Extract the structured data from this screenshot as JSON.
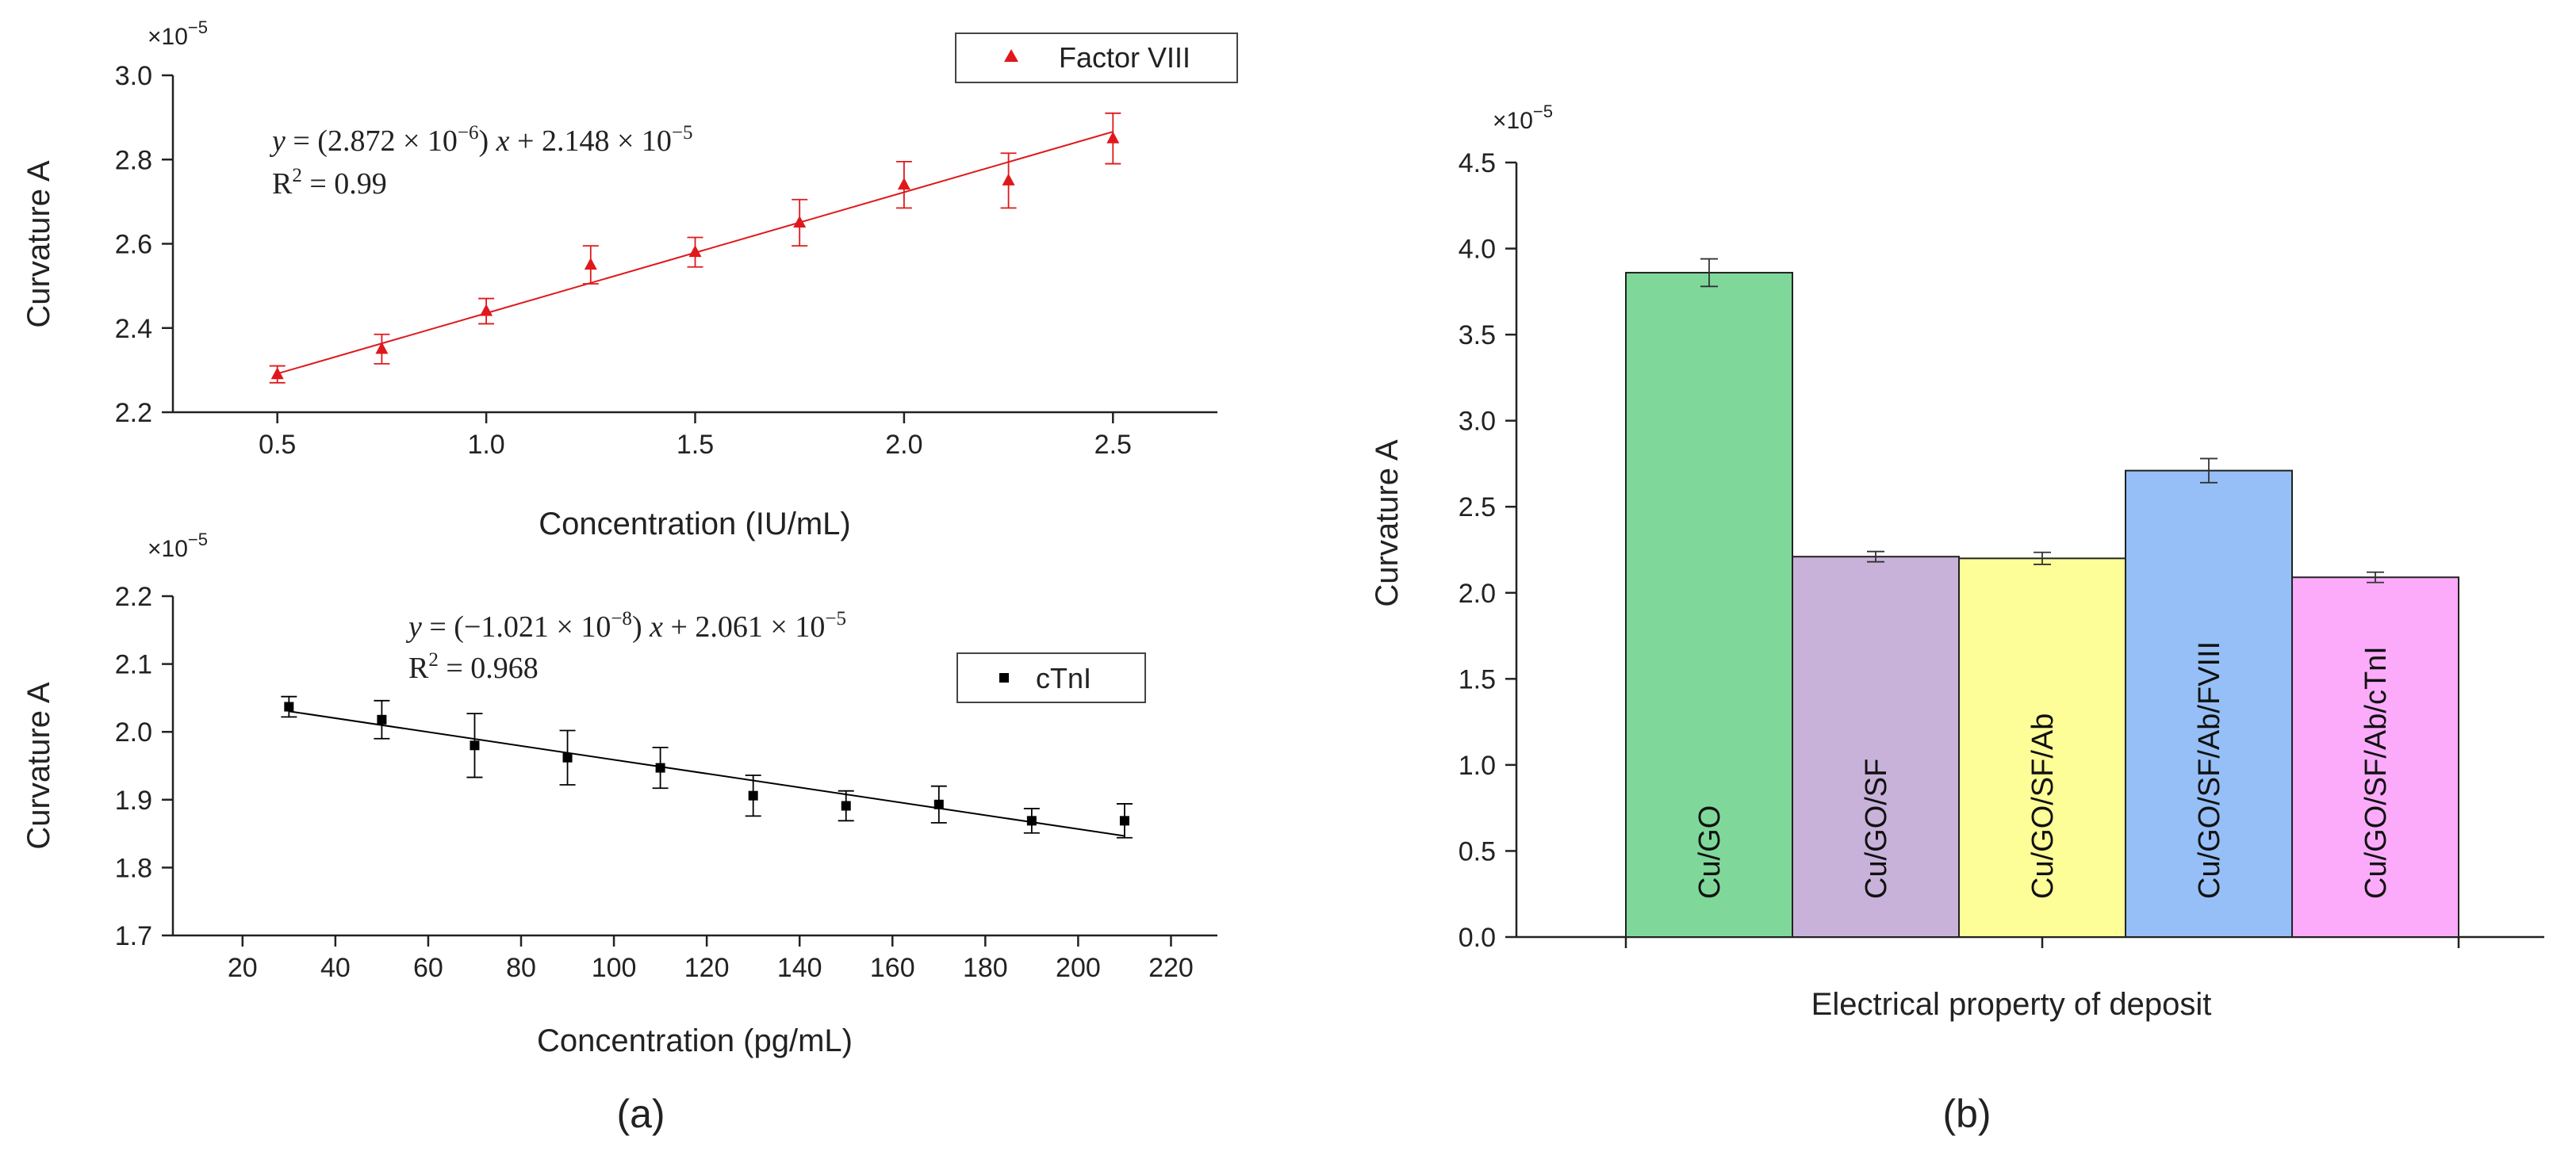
{
  "panels": {
    "a": "(a)",
    "b": "(b)"
  },
  "chart_data": [
    {
      "id": "a_top",
      "type": "scatter",
      "xlabel": "Concentration (IU/mL)",
      "ylabel": "Curvature A",
      "y_multiplier": "×10",
      "y_multiplier_exp": "−5",
      "xlim": [
        0.25,
        2.75
      ],
      "ylim": [
        2.2,
        3.0
      ],
      "xticks": [
        0.5,
        1.0,
        1.5,
        2.0,
        2.5
      ],
      "xtick_labels": [
        "0.5",
        "1.0",
        "1.5",
        "2.0",
        "2.5"
      ],
      "yticks": [
        2.2,
        2.4,
        2.6,
        2.8,
        3.0
      ],
      "ytick_labels": [
        "2.2",
        "2.4",
        "2.6",
        "2.8",
        "3.0"
      ],
      "color": "#e0181b",
      "marker": "triangle",
      "legend": "Factor VIII",
      "legend_position": "top-right",
      "series": [
        {
          "name": "Factor VIII",
          "x": [
            0.5,
            0.75,
            1.0,
            1.25,
            1.5,
            1.75,
            2.0,
            2.25,
            2.5
          ],
          "y": [
            2.29,
            2.35,
            2.44,
            2.55,
            2.58,
            2.65,
            2.74,
            2.75,
            2.85
          ],
          "err": [
            0.02,
            0.035,
            0.03,
            0.045,
            0.035,
            0.055,
            0.055,
            0.065,
            0.06
          ]
        }
      ],
      "fit": {
        "slope": 0.2872,
        "intercept": 2.148
      },
      "equation": {
        "y": "y",
        "lhs": " = (2.872 × 10",
        "exp1": "−6",
        "mid": ") ",
        "x": "x",
        "rest": " + 2.148 × 10",
        "exp2": "−5",
        "r2": "R",
        "r2_sup": "2",
        "r2_val": " = 0.99"
      }
    },
    {
      "id": "a_bottom",
      "type": "scatter",
      "xlabel": "Concentration (pg/mL)",
      "ylabel": "Curvature A",
      "y_multiplier": "×10",
      "y_multiplier_exp": "−5",
      "xlim": [
        5,
        230
      ],
      "ylim": [
        1.7,
        2.2
      ],
      "xticks": [
        20,
        40,
        60,
        80,
        100,
        120,
        140,
        160,
        180,
        200,
        220
      ],
      "xtick_labels": [
        "20",
        "40",
        "60",
        "80",
        "100",
        "120",
        "140",
        "160",
        "180",
        "200",
        "220"
      ],
      "yticks": [
        1.7,
        1.8,
        1.9,
        2.0,
        2.1,
        2.2
      ],
      "ytick_labels": [
        "1.7",
        "1.8",
        "1.9",
        "2.0",
        "2.1",
        "2.2"
      ],
      "color": "#000000",
      "marker": "square",
      "legend": "cTnI",
      "legend_position": "right",
      "series": [
        {
          "name": "cTnI",
          "x": [
            30,
            50,
            70,
            90,
            110,
            130,
            150,
            170,
            190,
            210
          ],
          "y": [
            2.037,
            2.018,
            1.98,
            1.962,
            1.947,
            1.906,
            1.891,
            1.893,
            1.869,
            1.869
          ],
          "err": [
            0.015,
            0.028,
            0.047,
            0.04,
            0.03,
            0.03,
            0.022,
            0.027,
            0.018,
            0.025
          ]
        }
      ],
      "fit": {
        "slope": -0.001021,
        "intercept": 2.061
      },
      "equation": {
        "y": "y",
        "lhs": " = (−1.021 × 10",
        "exp1": "−8",
        "mid": ") ",
        "x": "x",
        "rest": " + 2.061 × 10",
        "exp2": "−5",
        "r2": "R",
        "r2_sup": "2",
        "r2_val": " = 0.968"
      }
    },
    {
      "id": "b",
      "type": "bar",
      "xlabel": "Electrical property of deposit",
      "ylabel": "Curvature A",
      "y_multiplier": "×10",
      "y_multiplier_exp": "−5",
      "ylim": [
        0,
        4.5
      ],
      "yticks": [
        0,
        0.5,
        1.0,
        1.5,
        2.0,
        2.5,
        3.0,
        3.5,
        4.0,
        4.5
      ],
      "ytick_labels": [
        "0.0",
        "0.5",
        "1.0",
        "1.5",
        "2.0",
        "2.5",
        "3.0",
        "3.5",
        "4.0",
        "4.5"
      ],
      "categories": [
        "Cu/GO",
        "Cu/GO/SF",
        "Cu/GO/SF/Ab",
        "Cu/GO/SF/Ab/FVIII",
        "Cu/GO/SF/Ab/cTnI"
      ],
      "values": [
        3.86,
        2.21,
        2.2,
        2.71,
        2.09
      ],
      "errors": [
        0.08,
        0.03,
        0.035,
        0.07,
        0.03
      ],
      "colors": [
        "#7fd89a",
        "#c8b2da",
        "#fefe99",
        "#95bff6",
        "#fcabfb"
      ]
    }
  ]
}
